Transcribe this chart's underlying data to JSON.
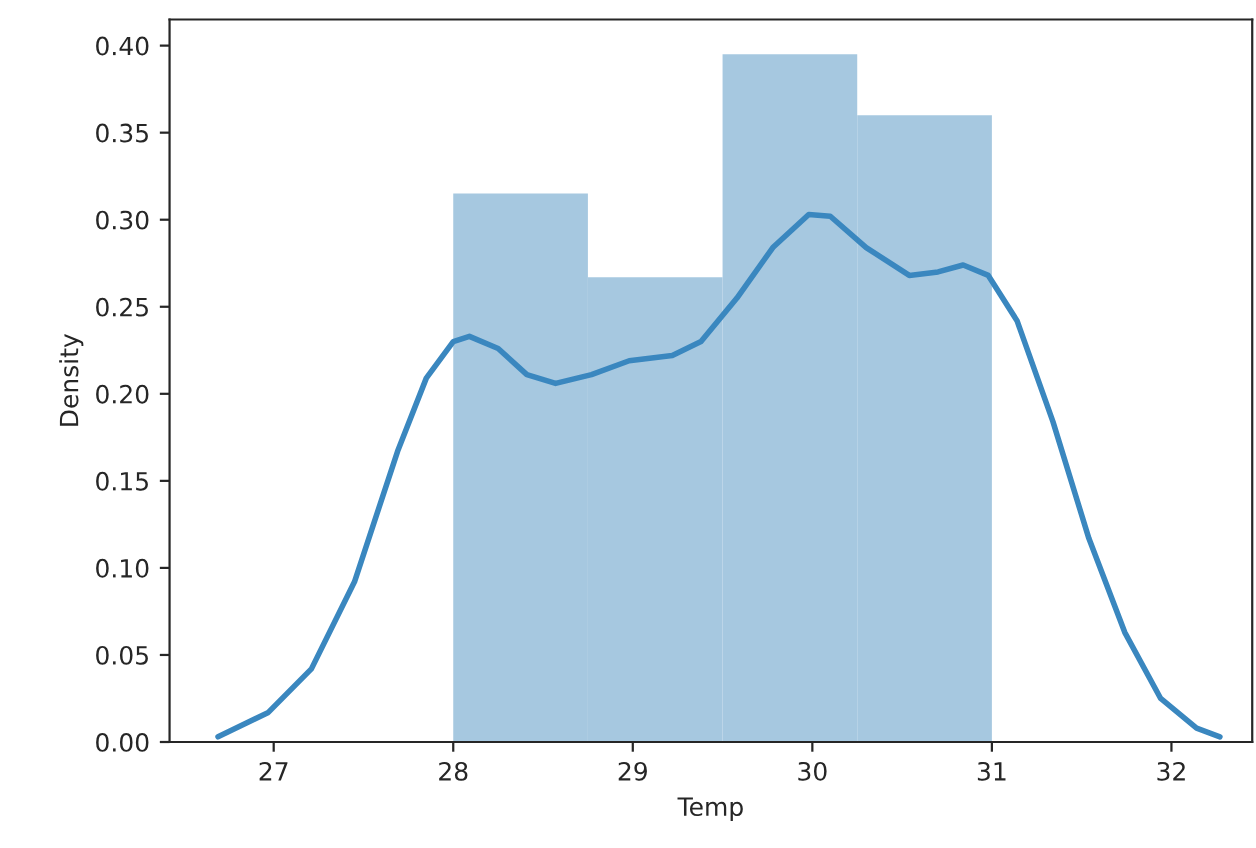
{
  "chart_data": {
    "type": "histogram",
    "xlabel": "Temp",
    "ylabel": "Density",
    "bins": [
      28,
      28.75,
      29.5,
      30.25,
      31
    ],
    "values": [
      0.315,
      0.267,
      0.395,
      0.36
    ],
    "color": "#a6c8e0",
    "series": [
      {
        "type": "line",
        "color": "#3a87bf",
        "x": [
          26.69,
          26.97,
          27.21,
          27.45,
          27.69,
          27.85,
          28.0,
          28.09,
          28.25,
          28.41,
          28.57,
          28.77,
          28.98,
          29.22,
          29.38,
          29.58,
          29.78,
          29.98,
          30.1,
          30.3,
          30.54,
          30.7,
          30.84,
          30.98,
          31.14,
          31.34,
          31.54,
          31.74,
          31.94,
          32.14,
          32.27
        ],
        "values": [
          0.003,
          0.017,
          0.042,
          0.092,
          0.167,
          0.209,
          0.23,
          0.233,
          0.226,
          0.211,
          0.206,
          0.211,
          0.219,
          0.222,
          0.23,
          0.255,
          0.284,
          0.303,
          0.302,
          0.284,
          0.268,
          0.27,
          0.274,
          0.268,
          0.242,
          0.184,
          0.117,
          0.063,
          0.025,
          0.008,
          0.003
        ]
      }
    ],
    "xlim": [
      26.42,
      32.45
    ],
    "xticks": [
      27,
      28,
      29,
      30,
      31,
      32
    ],
    "ylim": [
      0,
      0.415
    ],
    "yticks": [
      {
        "value": 0,
        "label": "0.00"
      },
      {
        "value": 0.05,
        "label": "0.05"
      },
      {
        "value": 0.1,
        "label": "0.10"
      },
      {
        "value": 0.15,
        "label": "0.15"
      },
      {
        "value": 0.2,
        "label": "0.20"
      },
      {
        "value": 0.25,
        "label": "0.25"
      },
      {
        "value": 0.3,
        "label": "0.30"
      },
      {
        "value": 0.35,
        "label": "0.35"
      },
      {
        "value": 0.4,
        "label": "0.40"
      }
    ],
    "grid": false
  }
}
